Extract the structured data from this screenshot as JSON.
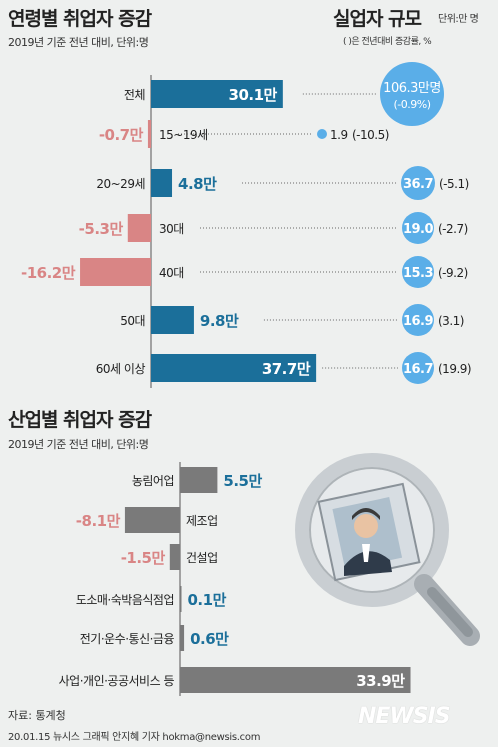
{
  "titles": {
    "age_title": "연령별 취업자 증감",
    "age_subtitle": "2019년 기준 전년 대비, 단위:명",
    "unemp_title": "실업자 규모",
    "unemp_unit": "단위:만 명",
    "unemp_note": "( )은 전년대비 증감률, %",
    "industry_title": "산업별 취업자 증감",
    "industry_subtitle": "2019년 기준 전년 대비, 단위:명",
    "source": "자료: 통계청",
    "credit": "20.01.15 뉴시스 그래픽 안지혜 기자 hokma@newsis.com",
    "logo": "NEWSIS"
  },
  "colors": {
    "positive_age": "#1b6f9a",
    "negative_age": "#d98585",
    "circle": "#5aaee8",
    "positive_industry": "#7a7a7a",
    "negative_industry": "#7a7a7a",
    "label_positive": "#1b6f9a",
    "label_negative": "#d98585",
    "background": "#eef0ef"
  },
  "icons": [
    "magnifier-icon",
    "id-photo-icon"
  ],
  "chart_data": [
    {
      "type": "bar",
      "orientation": "horizontal",
      "title": "연령별 취업자 증감",
      "categories": [
        "전체",
        "15~19세",
        "20~29세",
        "30대",
        "40대",
        "50대",
        "60세 이상"
      ],
      "values": [
        30.1,
        -0.7,
        4.8,
        -5.3,
        -16.2,
        9.8,
        37.7
      ],
      "value_labels": [
        "30.1만",
        "-0.7만",
        "4.8만",
        "-5.3만",
        "-16.2만",
        "9.8만",
        "37.7만"
      ]
    },
    {
      "type": "scatter",
      "title": "실업자 규모",
      "categories": [
        "전체",
        "15~19세",
        "20~29세",
        "30대",
        "40대",
        "50대",
        "60세 이상"
      ],
      "values": [
        106.3,
        1.9,
        36.7,
        19.0,
        15.3,
        16.9,
        16.7
      ],
      "value_labels": [
        "106.3만명",
        "1.9",
        "36.7",
        "19.0",
        "15.3",
        "16.9",
        "16.7"
      ],
      "change_labels": [
        "(-0.9%)",
        "(-10.5)",
        "(-5.1)",
        "(-2.7)",
        "(-9.2)",
        "(3.1)",
        "(19.9)"
      ]
    },
    {
      "type": "bar",
      "orientation": "horizontal",
      "title": "산업별 취업자 증감",
      "categories": [
        "농림어업",
        "제조업",
        "건설업",
        "도소매·숙박음식점업",
        "전기·운수·통신·금융",
        "사업·개인·공공서비스 등"
      ],
      "values": [
        5.5,
        -8.1,
        -1.5,
        0.1,
        0.6,
        33.9
      ],
      "value_labels": [
        "5.5만",
        "-8.1만",
        "-1.5만",
        "0.1만",
        "0.6만",
        "33.9만"
      ]
    }
  ]
}
